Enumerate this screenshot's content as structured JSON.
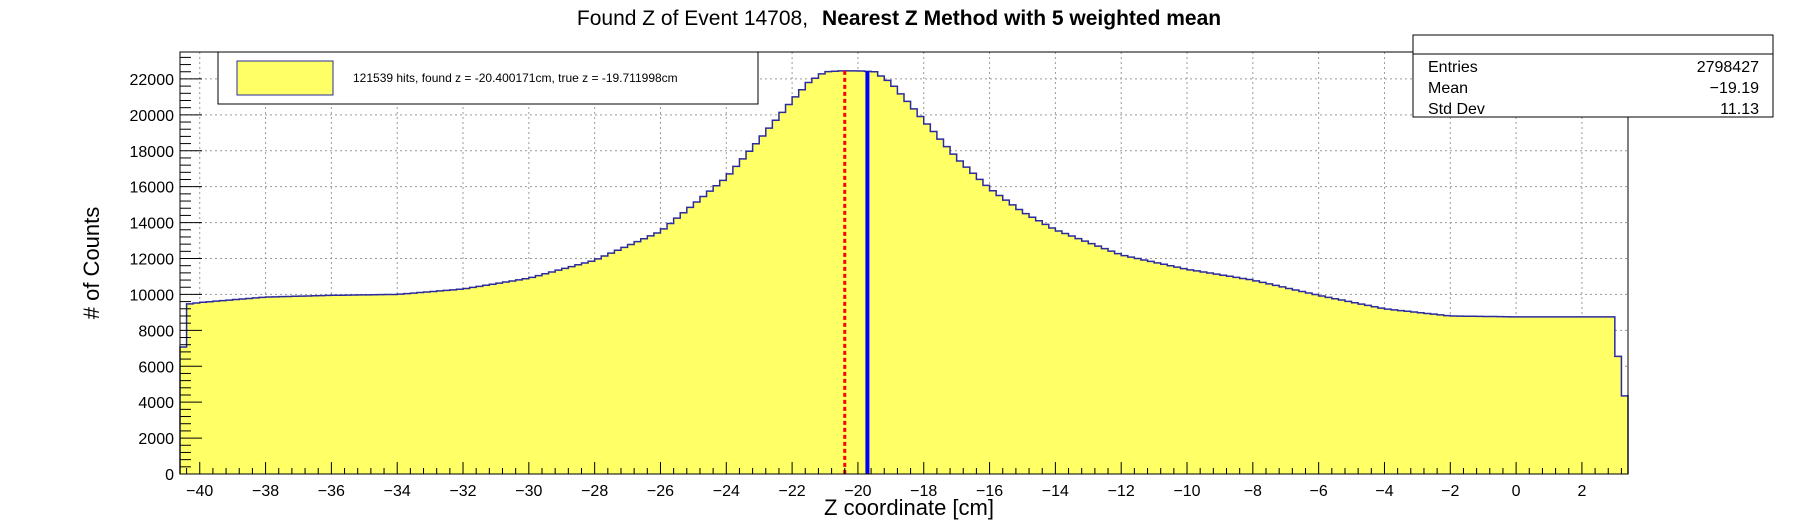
{
  "title": {
    "prefix": "Found Z of Event 14708,",
    "bold": "Nearest Z Method with 5 weighted mean"
  },
  "legend": {
    "label": "121539 hits, found z = -20.400171cm, true z = -19.711998cm"
  },
  "stats": {
    "rows": [
      {
        "label": "Entries",
        "value": "2798427"
      },
      {
        "label": "Mean",
        "value": "−19.19"
      },
      {
        "label": "Std Dev",
        "value": "11.13"
      }
    ]
  },
  "colors": {
    "fill": "#ffff66",
    "outline": "#2b2b9e",
    "found_line": "#ff0000",
    "true_line": "#0000ff",
    "grid": "#9a9a9a"
  },
  "chart_data": {
    "type": "bar",
    "title": "Found Z of Event 14708, Nearest Z Method with 5 weighted mean",
    "xlabel": "Z coordinate [cm]",
    "ylabel": "# of Counts",
    "xlim": [
      -40.6,
      3.4
    ],
    "ylim": [
      0,
      23500
    ],
    "grid": true,
    "legend_position": "top-left",
    "x_ticks": [
      -40,
      -38,
      -36,
      -34,
      -32,
      -30,
      -28,
      -26,
      -24,
      -22,
      -20,
      -18,
      -16,
      -14,
      -12,
      -10,
      -8,
      -6,
      -4,
      -2,
      0,
      2
    ],
    "y_ticks": [
      0,
      2000,
      4000,
      6000,
      8000,
      10000,
      12000,
      14000,
      16000,
      18000,
      20000,
      22000
    ],
    "x_tick_labels": [
      "−40",
      "−38",
      "−36",
      "−34",
      "−32",
      "−30",
      "−28",
      "−26",
      "−24",
      "−22",
      "−20",
      "−18",
      "−16",
      "−14",
      "−12",
      "−10",
      "−8",
      "−6",
      "−4",
      "−2",
      "0",
      "2"
    ],
    "y_tick_labels": [
      "0",
      "2000",
      "4000",
      "6000",
      "8000",
      "10000",
      "12000",
      "14000",
      "16000",
      "18000",
      "20000",
      "22000"
    ],
    "series": [
      {
        "x": [
          -40.6,
          -40.4,
          -40.0,
          -39.0,
          -38.0,
          -36.0,
          -34.0,
          -32.0,
          -30.0,
          -28.0,
          -26.0,
          -24.0,
          -23.0,
          -22.0,
          -21.5,
          -21.0,
          -20.5,
          -20.0,
          -19.5,
          -19.0,
          -18.0,
          -17.0,
          -16.0,
          -15.0,
          -14.0,
          -12.0,
          -10.0,
          -8.0,
          -6.0,
          -4.0,
          -2.0,
          0.0,
          2.0,
          3.0,
          3.2,
          3.4
        ],
        "y": [
          4700,
          9450,
          9550,
          9700,
          9850,
          9950,
          10000,
          10300,
          10900,
          11900,
          13500,
          16500,
          18600,
          20800,
          21800,
          22400,
          22450,
          22450,
          22400,
          21800,
          19700,
          17600,
          15900,
          14600,
          13600,
          12200,
          11400,
          10800,
          9950,
          9200,
          8800,
          8750,
          8750,
          8750,
          4350,
          4350
        ]
      }
    ],
    "found_z": -20.400171,
    "true_z": -19.711998,
    "entries": 2798427,
    "mean": -19.19,
    "std_dev": 11.13
  }
}
